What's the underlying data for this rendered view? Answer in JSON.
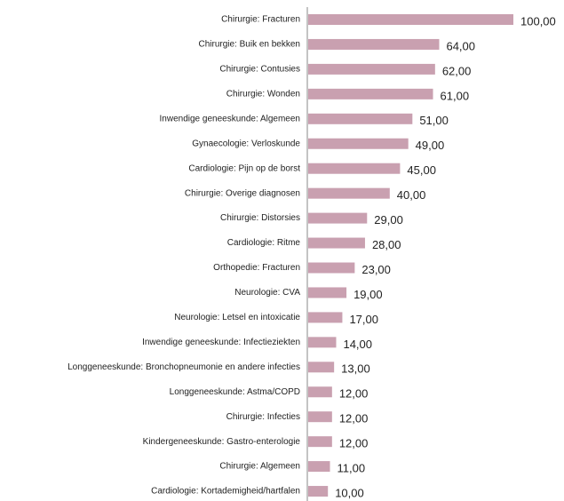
{
  "chart_data": {
    "type": "bar",
    "orientation": "horizontal",
    "color": "#c9a0b0",
    "categories": [
      "Chirurgie: Fracturen",
      "Chirurgie: Buik en bekken",
      "Chirurgie: Contusies",
      "Chirurgie: Wonden",
      "Inwendige geneeskunde: Algemeen",
      "Gynaecologie: Verloskunde",
      "Cardiologie: Pijn op de borst",
      "Chirurgie: Overige diagnosen",
      "Chirurgie: Distorsies",
      "Cardiologie: Ritme",
      "Orthopedie: Fracturen",
      "Neurologie: CVA",
      "Neurologie: Letsel en intoxicatie",
      "Inwendige geneeskunde: Infectieziekten",
      "Longgeneeskunde: Bronchopneumonie en andere infecties",
      "Longgeneeskunde: Astma/COPD",
      "Chirurgie: Infecties",
      "Kindergeneeskunde: Gastro-enterologie",
      "Chirurgie: Algemeen",
      "Cardiologie: Kortademigheid/hartfalen"
    ],
    "values": [
      100,
      64,
      62,
      61,
      51,
      49,
      45,
      40,
      29,
      28,
      23,
      19,
      17,
      14,
      13,
      12,
      12,
      12,
      11,
      10
    ],
    "value_labels": [
      "100,00",
      "64,00",
      "62,00",
      "61,00",
      "51,00",
      "49,00",
      "45,00",
      "40,00",
      "29,00",
      "28,00",
      "23,00",
      "19,00",
      "17,00",
      "14,00",
      "13,00",
      "12,00",
      "12,00",
      "12,00",
      "11,00",
      "10,00"
    ]
  }
}
